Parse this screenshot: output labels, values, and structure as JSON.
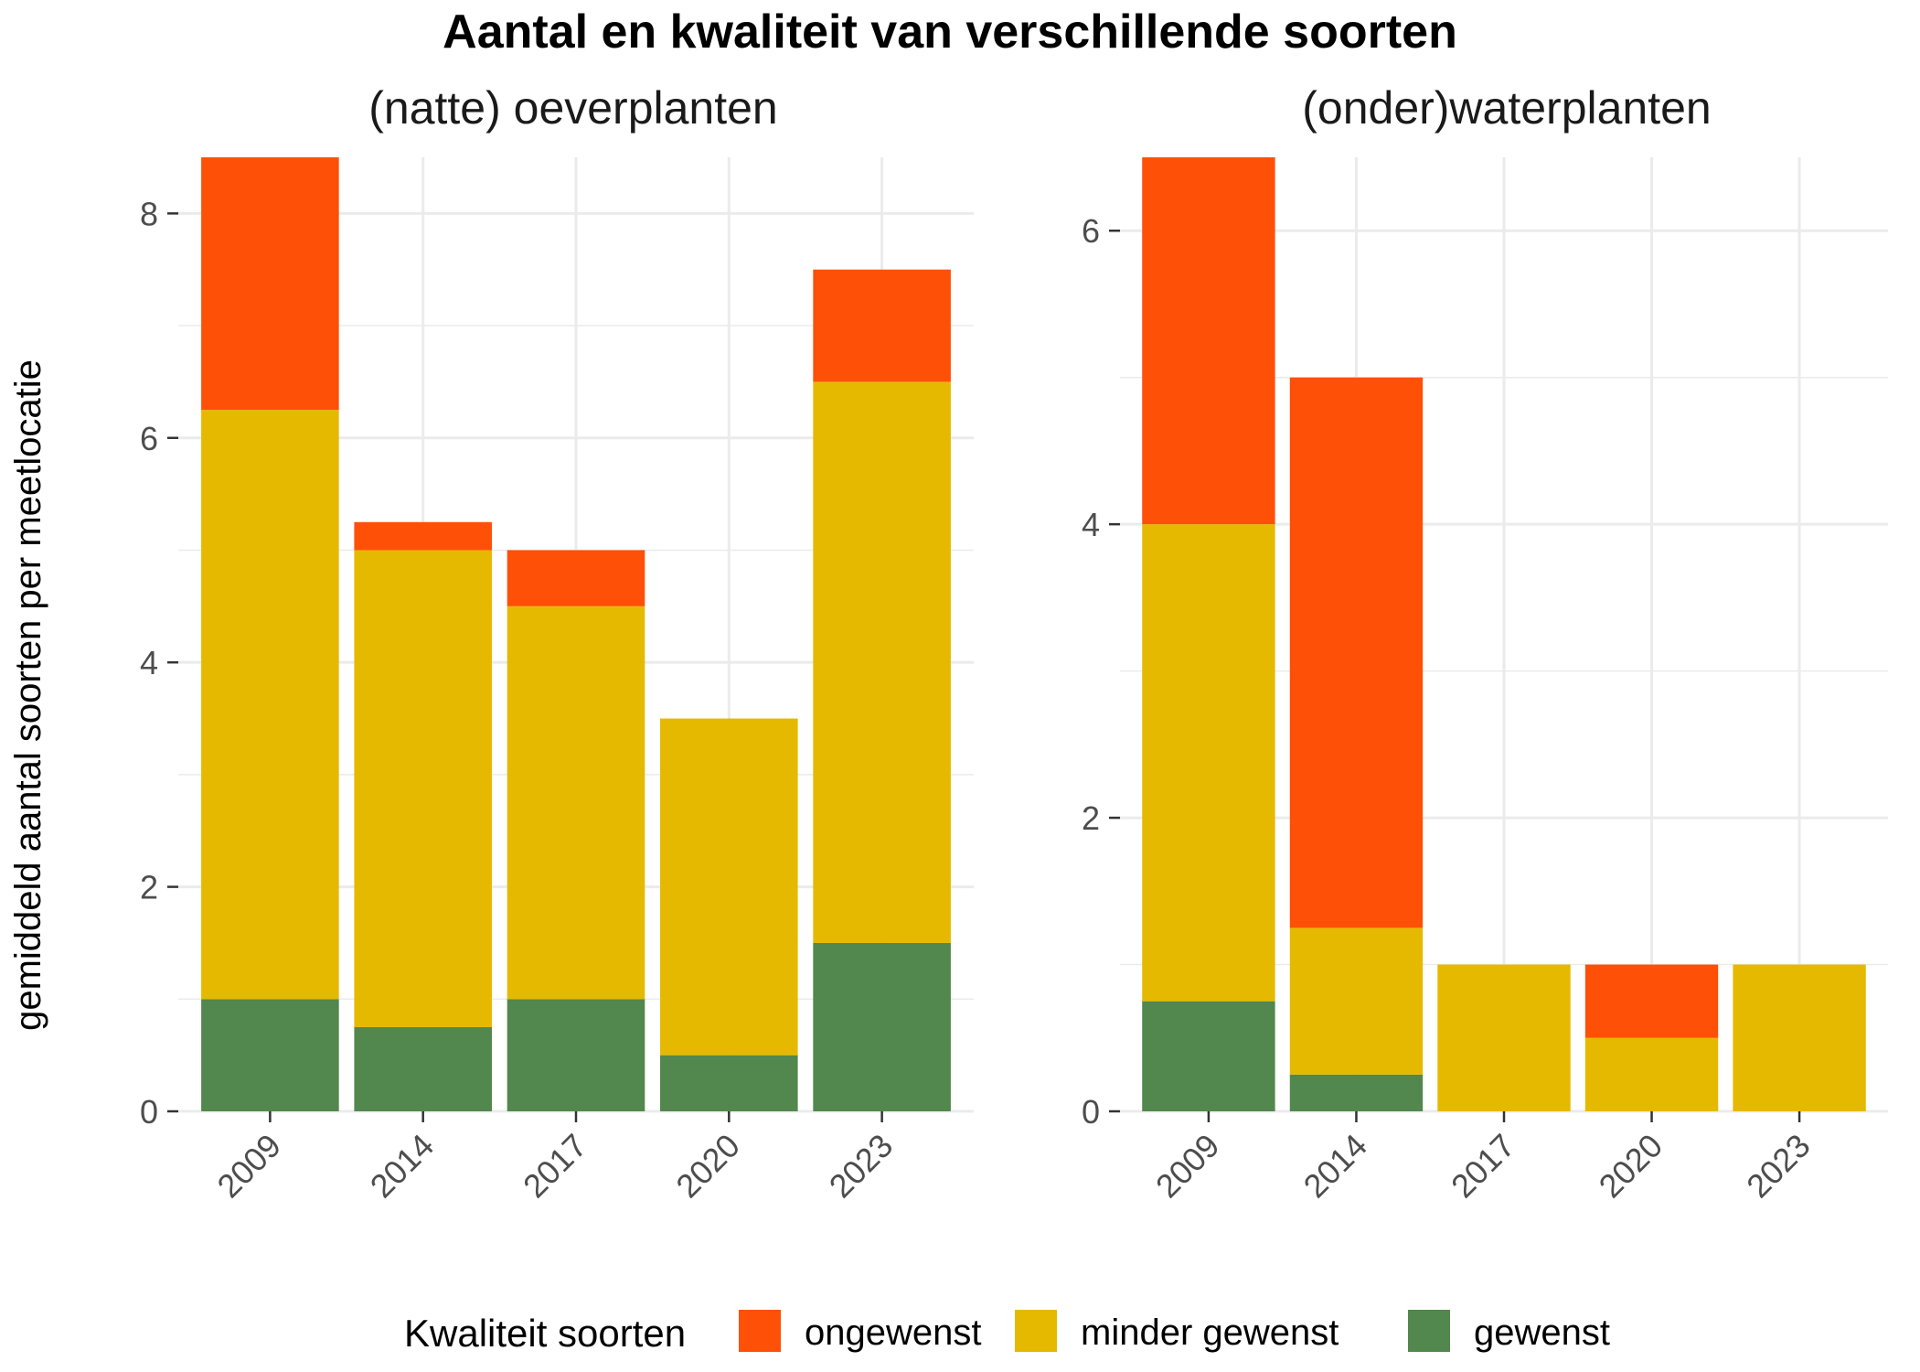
{
  "chart_data": {
    "type": "bar",
    "stacked": true,
    "title": "Aantal en kwaliteit van verschillende soorten",
    "ylabel": "gemiddeld aantal soorten per meetlocatie",
    "legend": {
      "title": "Kwaliteit soorten",
      "placement": "bottom",
      "entries": [
        {
          "name": "ongewenst",
          "color": "#FF5008"
        },
        {
          "name": "minder gewenst",
          "color": "#E5B900"
        },
        {
          "name": "gewenst",
          "color": "#52874D"
        }
      ]
    },
    "panels": [
      {
        "title": "(natte) oeverplanten",
        "categories": [
          "2009",
          "2014",
          "2017",
          "2020",
          "2023"
        ],
        "ylim": [
          0,
          8.5
        ],
        "yticks": [
          0,
          2,
          4,
          6,
          8
        ],
        "series": [
          {
            "name": "gewenst",
            "values": [
              1,
              0.75,
              1,
              0.5,
              1.5
            ]
          },
          {
            "name": "minder gewenst",
            "values": [
              5.25,
              4.25,
              3.5,
              3,
              5
            ]
          },
          {
            "name": "ongewenst",
            "values": [
              2.25,
              0.25,
              0.5,
              0,
              1
            ]
          }
        ]
      },
      {
        "title": "(onder)waterplanten",
        "categories": [
          "2009",
          "2014",
          "2017",
          "2020",
          "2023"
        ],
        "ylim": [
          0,
          6.5
        ],
        "yticks": [
          0,
          2,
          4,
          6
        ],
        "series": [
          {
            "name": "gewenst",
            "values": [
              0.75,
              0.25,
              0,
              0,
              0
            ]
          },
          {
            "name": "minder gewenst",
            "values": [
              3.25,
              1,
              1,
              0.5,
              1
            ]
          },
          {
            "name": "ongewenst",
            "values": [
              2.5,
              3.75,
              0,
              0.5,
              0
            ]
          }
        ]
      }
    ]
  }
}
